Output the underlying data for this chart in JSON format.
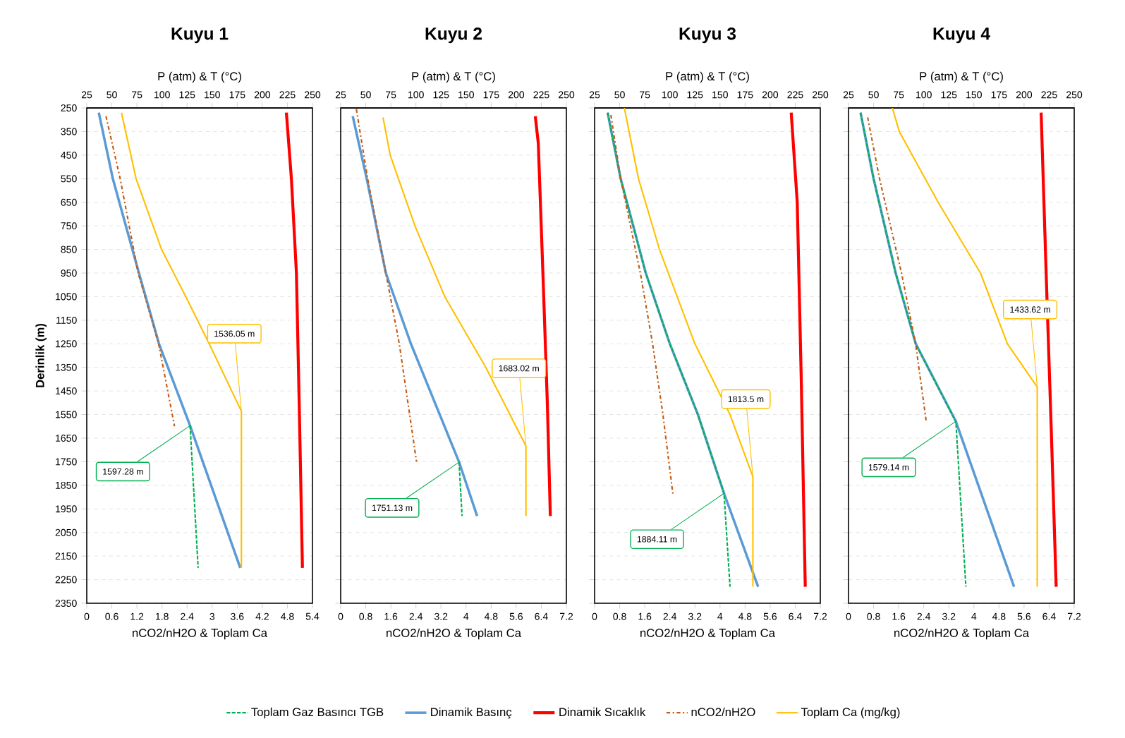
{
  "chart_data": [
    {
      "type": "line",
      "title": "Kuyu 1",
      "x2label": "P (atm) & T (°C)",
      "xlabel": "nCO2/nH2O & Toplam Ca",
      "ylabel": "Derinlik (m)",
      "x2lim": [
        25,
        250
      ],
      "x2ticks": [
        25,
        50,
        75,
        100,
        125,
        150,
        175,
        200,
        225,
        250
      ],
      "xlim": [
        0,
        5.4
      ],
      "xticks": [
        0,
        0.6,
        1.2,
        1.8,
        2.4,
        3,
        3.6,
        4.2,
        4.8,
        5.4
      ],
      "ylim": [
        2350,
        250
      ],
      "yticks": [
        250,
        350,
        450,
        550,
        650,
        750,
        850,
        950,
        1050,
        1150,
        1250,
        1350,
        1450,
        1550,
        1650,
        1750,
        1850,
        1950,
        2050,
        2150,
        2250,
        2350
      ],
      "grid": "y",
      "legend": "bottom",
      "series": [
        {
          "name": "Toplam Gaz Basıncı TGB",
          "color": "#00b050",
          "line_style": "dashed",
          "axis": "x2",
          "x": [
            128,
            136
          ],
          "values": [
            1597.28,
            2200
          ]
        },
        {
          "name": "Dinamik Basınç",
          "color": "#5b9bd5",
          "axis": "x2",
          "x": [
            37,
            51,
            77,
            97,
            128,
            178
          ],
          "values": [
            270,
            550,
            950,
            1250,
            1597.28,
            2200
          ]
        },
        {
          "name": "Dinamik Sıcaklık",
          "color": "#ff0000",
          "axis": "x2",
          "x": [
            224,
            229,
            234,
            237,
            240
          ],
          "values": [
            270,
            550,
            950,
            1550,
            2200
          ]
        },
        {
          "name": "nCO2/nH2O",
          "color": "#c55a11",
          "line_style": "dashdot",
          "x": [
            0.46,
            0.8,
            1.23,
            1.72,
            2.1
          ],
          "values": [
            285,
            550,
            950,
            1250,
            1600
          ]
        },
        {
          "name": "Toplam Ca (mg/kg)",
          "color": "#ffc000",
          "x": [
            0.83,
            1.18,
            1.79,
            2.37,
            2.93,
            3.7,
            3.7
          ],
          "values": [
            270,
            550,
            850,
            1050,
            1250,
            1536.05,
            2200
          ]
        }
      ],
      "annotations": [
        {
          "text": "1536.05 m",
          "x": 3.7,
          "y": 1536.05
        },
        {
          "text": "1597.28 m",
          "x": 2.47,
          "y": 1597.28
        }
      ]
    },
    {
      "type": "line",
      "title": "Kuyu 2",
      "x2label": "P (atm) & T (°C)",
      "xlabel": "nCO2/nH2O & Toplam Ca",
      "x2lim": [
        25,
        250
      ],
      "x2ticks": [
        25,
        50,
        75,
        100,
        125,
        150,
        175,
        200,
        225,
        250
      ],
      "xlim": [
        0,
        7.2
      ],
      "xticks": [
        0,
        0.8,
        1.6,
        2.4,
        3.2,
        4,
        4.8,
        5.6,
        6.4,
        7.2
      ],
      "ylim": [
        2350,
        250
      ],
      "yticks": [
        250,
        350,
        450,
        550,
        650,
        750,
        850,
        950,
        1050,
        1150,
        1250,
        1350,
        1450,
        1550,
        1650,
        1750,
        1850,
        1950,
        2050,
        2150,
        2250,
        2350
      ],
      "grid": "y",
      "tick_labels": "x",
      "series": [
        {
          "color": "#00b050",
          "line_style": "dashed",
          "axis": "x2",
          "x": [
            143,
            146
          ],
          "values": [
            1751.13,
            1980
          ]
        },
        {
          "color": "#5b9bd5",
          "axis": "x2",
          "x": [
            37,
            51,
            70,
            95,
            143,
            161
          ],
          "values": [
            285,
            550,
            950,
            1250,
            1751.13,
            1980
          ]
        },
        {
          "color": "#ff0000",
          "axis": "x2",
          "x": [
            219,
            222,
            227,
            231,
            234
          ],
          "values": [
            285,
            400,
            1000,
            1500,
            1980
          ]
        },
        {
          "color": "#c55a11",
          "line_style": "dashdot",
          "x": [
            0.5,
            0.86,
            1.44,
            1.87,
            2.42
          ],
          "values": [
            255,
            550,
            950,
            1250,
            1750
          ]
        },
        {
          "color": "#ffc000",
          "x": [
            1.35,
            1.58,
            2.37,
            3.32,
            4.63,
            5.91,
            5.91
          ],
          "values": [
            290,
            450,
            750,
            1050,
            1350,
            1683.02,
            1980
          ]
        }
      ],
      "annotations": [
        {
          "text": "1683.02 m",
          "x": 5.91,
          "y": 1683.02
        },
        {
          "text": "1751.13 m",
          "x": 3.78,
          "y": 1751.13
        }
      ]
    },
    {
      "type": "line",
      "title": "Kuyu 3",
      "x2label": "P (atm) & T (°C)",
      "xlabel": "nCO2/nH2O & Toplam Ca",
      "x2lim": [
        25,
        250
      ],
      "x2ticks": [
        25,
        50,
        75,
        100,
        125,
        150,
        175,
        200,
        225,
        250
      ],
      "xlim": [
        0,
        7.2
      ],
      "xticks": [
        0,
        0.8,
        1.6,
        2.4,
        3.2,
        4,
        4.8,
        5.6,
        6.4,
        7.2
      ],
      "ylim": [
        2350,
        250
      ],
      "yticks": [
        250,
        350,
        450,
        550,
        650,
        750,
        850,
        950,
        1050,
        1150,
        1250,
        1350,
        1450,
        1550,
        1650,
        1750,
        1850,
        1950,
        2050,
        2150,
        2250,
        2350
      ],
      "grid": "y",
      "tick_labels": "x",
      "series": [
        {
          "color": "#00b050",
          "line_style": "dashed",
          "axis": "x2",
          "x": [
            38,
            51,
            76,
            100,
            128,
            154,
            160
          ],
          "values": [
            270,
            550,
            950,
            1250,
            1550,
            1884.11,
            2280
          ]
        },
        {
          "color": "#5b9bd5",
          "axis": "x2",
          "x": [
            38,
            51,
            76,
            100,
            128,
            154,
            188
          ],
          "values": [
            270,
            550,
            950,
            1250,
            1550,
            1884.11,
            2280
          ]
        },
        {
          "color": "#ff0000",
          "axis": "x2",
          "x": [
            221,
            227,
            231,
            235
          ],
          "values": [
            270,
            650,
            1400,
            2280
          ]
        },
        {
          "color": "#c55a11",
          "line_style": "dashdot",
          "x": [
            0.52,
            0.83,
            1.46,
            1.85,
            2.18,
            2.5
          ],
          "values": [
            280,
            550,
            950,
            1250,
            1550,
            1890
          ]
        },
        {
          "color": "#ffc000",
          "x": [
            0.95,
            1.4,
            2.07,
            3.2,
            4.32,
            5.05,
            5.05
          ],
          "values": [
            250,
            550,
            850,
            1250,
            1550,
            1813.5,
            2280
          ]
        }
      ],
      "annotations": [
        {
          "text": "1813.5 m",
          "x": 5.05,
          "y": 1813.5
        },
        {
          "text": "1884.11 m",
          "x": 4.13,
          "y": 1884.11
        }
      ]
    },
    {
      "type": "line",
      "title": "Kuyu 4",
      "x2label": "P (atm) & T (°C)",
      "xlabel": "nCO2/nH2O & Toplam Ca",
      "x2lim": [
        25,
        250
      ],
      "x2ticks": [
        25,
        50,
        75,
        100,
        125,
        150,
        175,
        200,
        225,
        250
      ],
      "xlim": [
        0,
        7.2
      ],
      "xticks": [
        0,
        0.8,
        1.6,
        2.4,
        3.2,
        4,
        4.8,
        5.6,
        6.4,
        7.2
      ],
      "ylim": [
        2350,
        250
      ],
      "yticks": [
        250,
        350,
        450,
        550,
        650,
        750,
        850,
        950,
        1050,
        1150,
        1250,
        1350,
        1450,
        1550,
        1650,
        1750,
        1850,
        1950,
        2050,
        2150,
        2250,
        2350
      ],
      "grid": "y",
      "tick_labels": "x",
      "series": [
        {
          "color": "#00b050",
          "line_style": "dashed",
          "axis": "x2",
          "x": [
            37,
            50,
            72,
            92,
            132,
            142
          ],
          "values": [
            270,
            550,
            950,
            1250,
            1579.14,
            2280
          ]
        },
        {
          "color": "#5b9bd5",
          "axis": "x2",
          "x": [
            37,
            50,
            72,
            92,
            132,
            190
          ],
          "values": [
            270,
            550,
            950,
            1250,
            1579.14,
            2280
          ]
        },
        {
          "color": "#ff0000",
          "axis": "x2",
          "x": [
            217,
            222,
            227,
            232
          ],
          "values": [
            270,
            950,
            1600,
            2280
          ]
        },
        {
          "color": "#c55a11",
          "line_style": "dashdot",
          "x": [
            0.61,
            0.99,
            1.69,
            2.14,
            2.48
          ],
          "values": [
            290,
            550,
            950,
            1250,
            1580
          ]
        },
        {
          "color": "#ffc000",
          "x": [
            1.4,
            1.62,
            2.86,
            4.21,
            5.07,
            6.02,
            6.02
          ],
          "values": [
            250,
            350,
            650,
            950,
            1250,
            1433.62,
            2280
          ]
        }
      ],
      "annotations": [
        {
          "text": "1433.62 m",
          "x": 6.02,
          "y": 1433.62
        },
        {
          "text": "1579.14 m",
          "x": 3.42,
          "y": 1579.14
        }
      ]
    }
  ]
}
